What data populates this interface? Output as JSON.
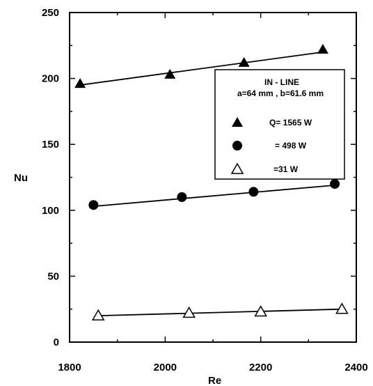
{
  "chart_data": {
    "type": "scatter",
    "xlabel": "Re",
    "ylabel": "Nu",
    "xlim": [
      1800,
      2400
    ],
    "ylim": [
      0,
      250
    ],
    "x_ticks": [
      "1800",
      "2000",
      "2200",
      "2400"
    ],
    "y_ticks": [
      "0",
      "50",
      "100",
      "150",
      "200",
      "250"
    ],
    "grid": false,
    "legend_position": "upper-right",
    "legend": {
      "title_line1": "IN - LINE",
      "title_line2": "a=64 mm , b=61.6 mm",
      "entries": [
        {
          "marker": "filled-triangle",
          "label": "Q= 1565 W"
        },
        {
          "marker": "filled-circle",
          "label": "= 498 W"
        },
        {
          "marker": "open-triangle",
          "label": "=31 W"
        }
      ]
    },
    "series": [
      {
        "name": "Q= 1565 W",
        "marker": "filled-triangle",
        "points": [
          [
            1822,
            196
          ],
          [
            2010,
            203
          ],
          [
            2165,
            212
          ],
          [
            2330,
            222
          ]
        ],
        "fit": [
          [
            1822,
            195
          ],
          [
            2330,
            220
          ]
        ]
      },
      {
        "name": "= 498 W",
        "marker": "filled-circle",
        "points": [
          [
            1850,
            104
          ],
          [
            2035,
            110
          ],
          [
            2185,
            114
          ],
          [
            2355,
            120
          ]
        ],
        "fit": [
          [
            1850,
            103
          ],
          [
            2355,
            119
          ]
        ]
      },
      {
        "name": "=31 W",
        "marker": "open-triangle",
        "points": [
          [
            1860,
            20
          ],
          [
            2050,
            22
          ],
          [
            2200,
            23
          ],
          [
            2370,
            25
          ]
        ],
        "fit": [
          [
            1860,
            20
          ],
          [
            2370,
            25
          ]
        ]
      }
    ]
  }
}
